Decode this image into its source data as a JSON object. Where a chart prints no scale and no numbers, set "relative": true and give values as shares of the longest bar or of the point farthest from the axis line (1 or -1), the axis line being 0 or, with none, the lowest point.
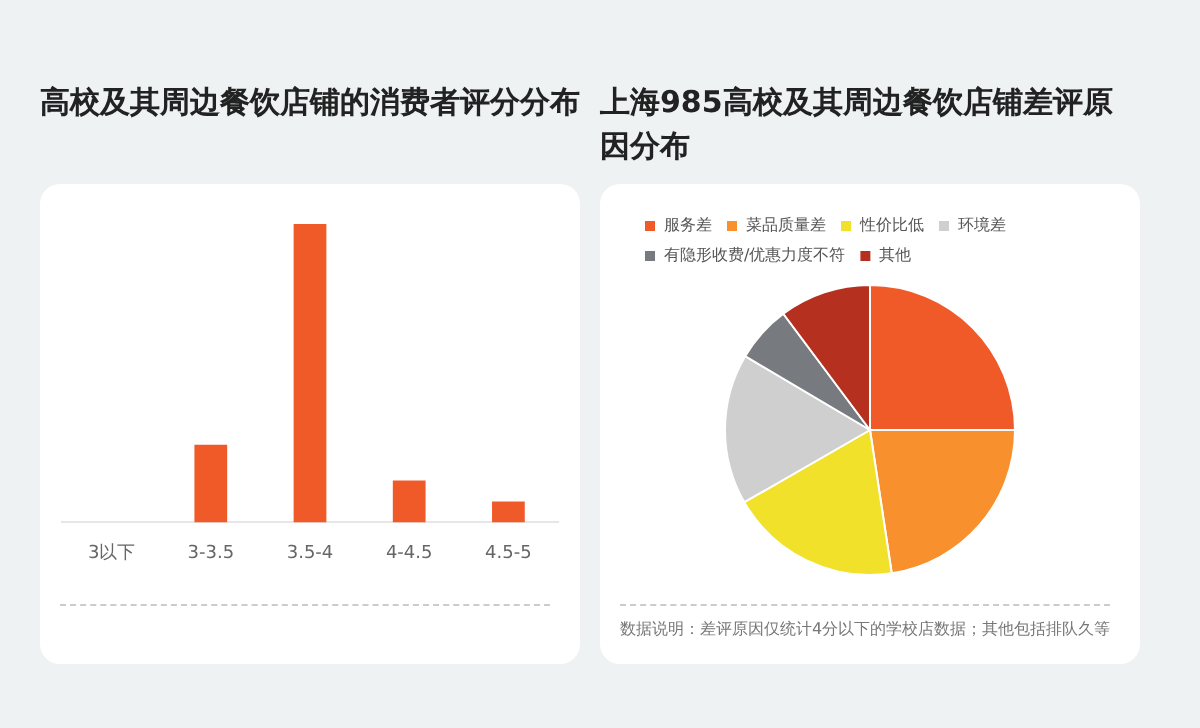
{
  "chart_data": [
    {
      "type": "bar",
      "title": "高校及其周边餐饮店铺的消费者评分分布",
      "categories": [
        "3以下",
        "3-3.5",
        "3.5-4",
        "4-4.5",
        "4.5-5"
      ],
      "values": [
        0,
        0.26,
        1,
        0.14,
        0.07
      ],
      "color": "#f05a28",
      "relative": true,
      "grid": false,
      "legend": false
    },
    {
      "type": "pie",
      "title": "上海985高校及其周边餐饮店铺差评原因分布",
      "categories": [
        "服务差",
        "菜品质量差",
        "性价比低",
        "环境差",
        "有隐形收费/优惠力度不符",
        "其他"
      ],
      "values": [
        25,
        22.6,
        19.1,
        16.8,
        6.3,
        10.2
      ],
      "colors": [
        "#f05a28",
        "#f7902d",
        "#f2e12b",
        "#cfcfcf",
        "#777b80",
        "#b5301f"
      ],
      "legend": "top",
      "annotations": [
        "数据说明：差评原因仅统计4分以下的学校店数据；其他包括排队久等"
      ]
    }
  ]
}
